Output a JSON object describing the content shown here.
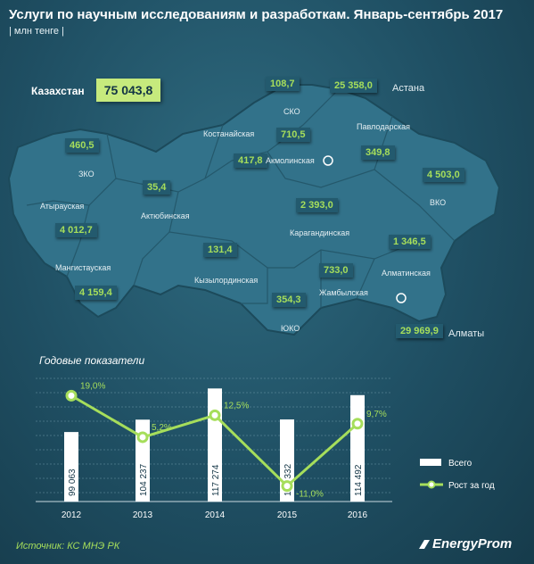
{
  "title": "Услуги по научным исследованиям и разработкам. Январь-сентябрь 2017",
  "subtitle": "| млн тенге |",
  "total": {
    "label": "Казахстан",
    "value": "75 043,8"
  },
  "regions": [
    {
      "name": "СКО",
      "value": "108,7"
    },
    {
      "name": "Астана",
      "value": "25 358,0"
    },
    {
      "name": "Костанайская",
      "value": "417,8"
    },
    {
      "name": "Акмолинская",
      "value": "710,5"
    },
    {
      "name": "Павлодарская",
      "value": "349,8"
    },
    {
      "name": "ЗКО",
      "value": "460,5"
    },
    {
      "name": "Актюбинская",
      "value": "35,4"
    },
    {
      "name": "Атырауская",
      "value": "4 012,7"
    },
    {
      "name": "Карагандинская",
      "value": "2 393,0"
    },
    {
      "name": "ВКО",
      "value": "4 503,0"
    },
    {
      "name": "Мангистауская",
      "value": "4 159,4"
    },
    {
      "name": "Кызылординская",
      "value": "131,4"
    },
    {
      "name": "Алматинская",
      "value": "1 346,5"
    },
    {
      "name": "Жамбылская",
      "value": "733,0"
    },
    {
      "name": "ЮКО",
      "value": "354,3"
    },
    {
      "name": "Алматы",
      "value": "29 969,9"
    }
  ],
  "chart_title": "Годовые показатели",
  "chart_data": {
    "type": "bar+line",
    "categories": [
      "2012",
      "2013",
      "2014",
      "2015",
      "2016"
    ],
    "series": [
      {
        "name": "Всего",
        "type": "bar",
        "values": [
          99063,
          104237,
          117274,
          104332,
          114492
        ],
        "labels": [
          "99 063",
          "104 237",
          "117 274",
          "104 332",
          "114 492"
        ],
        "color": "#ffffff"
      },
      {
        "name": "Рост за год",
        "type": "line",
        "values": [
          19.0,
          5.2,
          12.5,
          -11.0,
          9.7
        ],
        "labels": [
          "19,0%",
          "5,2%",
          "12,5%",
          "-11,0%",
          "9,7%"
        ],
        "color": "#a6de5b"
      }
    ],
    "legend": "right"
  },
  "source": "Источник: КС МНЭ РК",
  "logo": "EnergyProm"
}
